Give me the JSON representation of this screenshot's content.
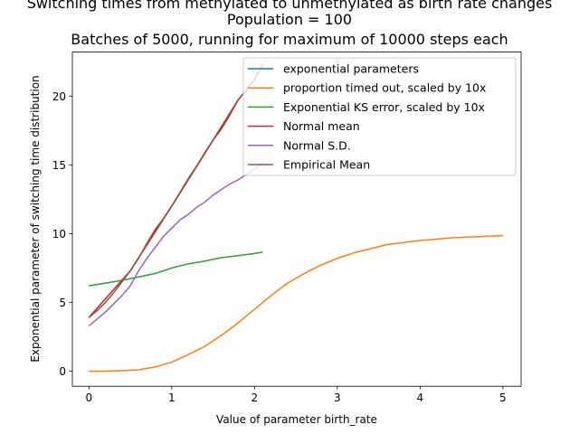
{
  "chart_data": {
    "type": "line",
    "title_lines": [
      "Switching times from methylated to unmethylated as birth rate changes",
      "Population = 100",
      "Batches of 5000, running for maximum of 10000 steps each"
    ],
    "xlabel": "Value of parameter birth_rate",
    "ylabel": "Exponential parameter of switching time distribution",
    "xlim": [
      -0.2,
      5.22
    ],
    "ylim": [
      -1.1,
      23.2
    ],
    "xticks": [
      0,
      1,
      2,
      3,
      4,
      5
    ],
    "yticks": [
      0,
      5,
      10,
      15,
      20
    ],
    "legend_position": "top-right",
    "grid": false,
    "series": [
      {
        "name": "exponential parameters",
        "color": "#1f77b4",
        "x": [
          0.0,
          0.5,
          1.0,
          1.5,
          1.8,
          2.0,
          2.1
        ],
        "y": [
          3.9,
          7.3,
          12.0,
          16.8,
          19.7,
          21.2,
          22.3
        ]
      },
      {
        "name": "proportion timed out, scaled by 10x",
        "color": "#ff7f0e",
        "x": [
          0.0,
          0.2,
          0.4,
          0.6,
          0.8,
          1.0,
          1.2,
          1.4,
          1.6,
          1.8,
          2.0,
          2.2,
          2.4,
          2.6,
          2.8,
          3.0,
          3.2,
          3.4,
          3.6,
          3.8,
          4.0,
          4.2,
          4.4,
          4.6,
          4.8,
          5.0
        ],
        "y": [
          0.0,
          0.0,
          0.03,
          0.1,
          0.3,
          0.65,
          1.2,
          1.8,
          2.6,
          3.5,
          4.5,
          5.5,
          6.4,
          7.1,
          7.7,
          8.2,
          8.6,
          8.9,
          9.2,
          9.35,
          9.5,
          9.6,
          9.7,
          9.75,
          9.8,
          9.85
        ]
      },
      {
        "name": "Exponential KS error, scaled by 10x",
        "color": "#2ca02c",
        "x": [
          0.0,
          0.2,
          0.4,
          0.6,
          0.8,
          1.0,
          1.2,
          1.4,
          1.6,
          1.8,
          2.0,
          2.1
        ],
        "y": [
          6.2,
          6.4,
          6.6,
          6.85,
          7.1,
          7.5,
          7.8,
          8.0,
          8.25,
          8.4,
          8.55,
          8.65
        ]
      },
      {
        "name": "Normal mean",
        "color": "#d62728",
        "x": [
          0.0,
          0.5,
          1.0,
          1.5,
          1.8,
          2.0,
          2.1
        ],
        "y": [
          3.9,
          7.3,
          12.0,
          16.8,
          19.7,
          21.2,
          22.3
        ]
      },
      {
        "name": "Normal S.D.",
        "color": "#9467bd",
        "x": [
          0.0,
          0.1,
          0.2,
          0.3,
          0.4,
          0.5,
          0.6,
          0.7,
          0.8,
          0.9,
          1.0,
          1.1,
          1.2,
          1.3,
          1.4,
          1.5,
          1.6,
          1.7,
          1.8,
          1.9,
          2.0,
          2.1
        ],
        "y": [
          3.3,
          3.8,
          4.3,
          4.9,
          5.5,
          6.2,
          7.3,
          8.2,
          9.0,
          9.8,
          10.4,
          11.0,
          11.4,
          11.9,
          12.3,
          12.8,
          13.2,
          13.6,
          13.9,
          14.3,
          14.7,
          15.1
        ]
      },
      {
        "name": "Empirical Mean",
        "color": "#8c564b",
        "x": [
          0.0,
          0.1,
          0.2,
          0.3,
          0.4,
          0.5,
          0.6,
          0.7,
          0.8,
          0.9,
          1.0,
          1.1,
          1.2,
          1.3,
          1.4,
          1.5,
          1.6,
          1.7,
          1.8,
          1.9,
          2.0,
          2.1
        ],
        "y": [
          3.9,
          4.4,
          5.0,
          5.7,
          6.5,
          7.3,
          8.2,
          9.3,
          10.3,
          11.1,
          12.0,
          13.0,
          14.0,
          14.9,
          15.9,
          16.8,
          17.6,
          18.6,
          19.7,
          20.4,
          21.2,
          22.3
        ]
      }
    ]
  }
}
